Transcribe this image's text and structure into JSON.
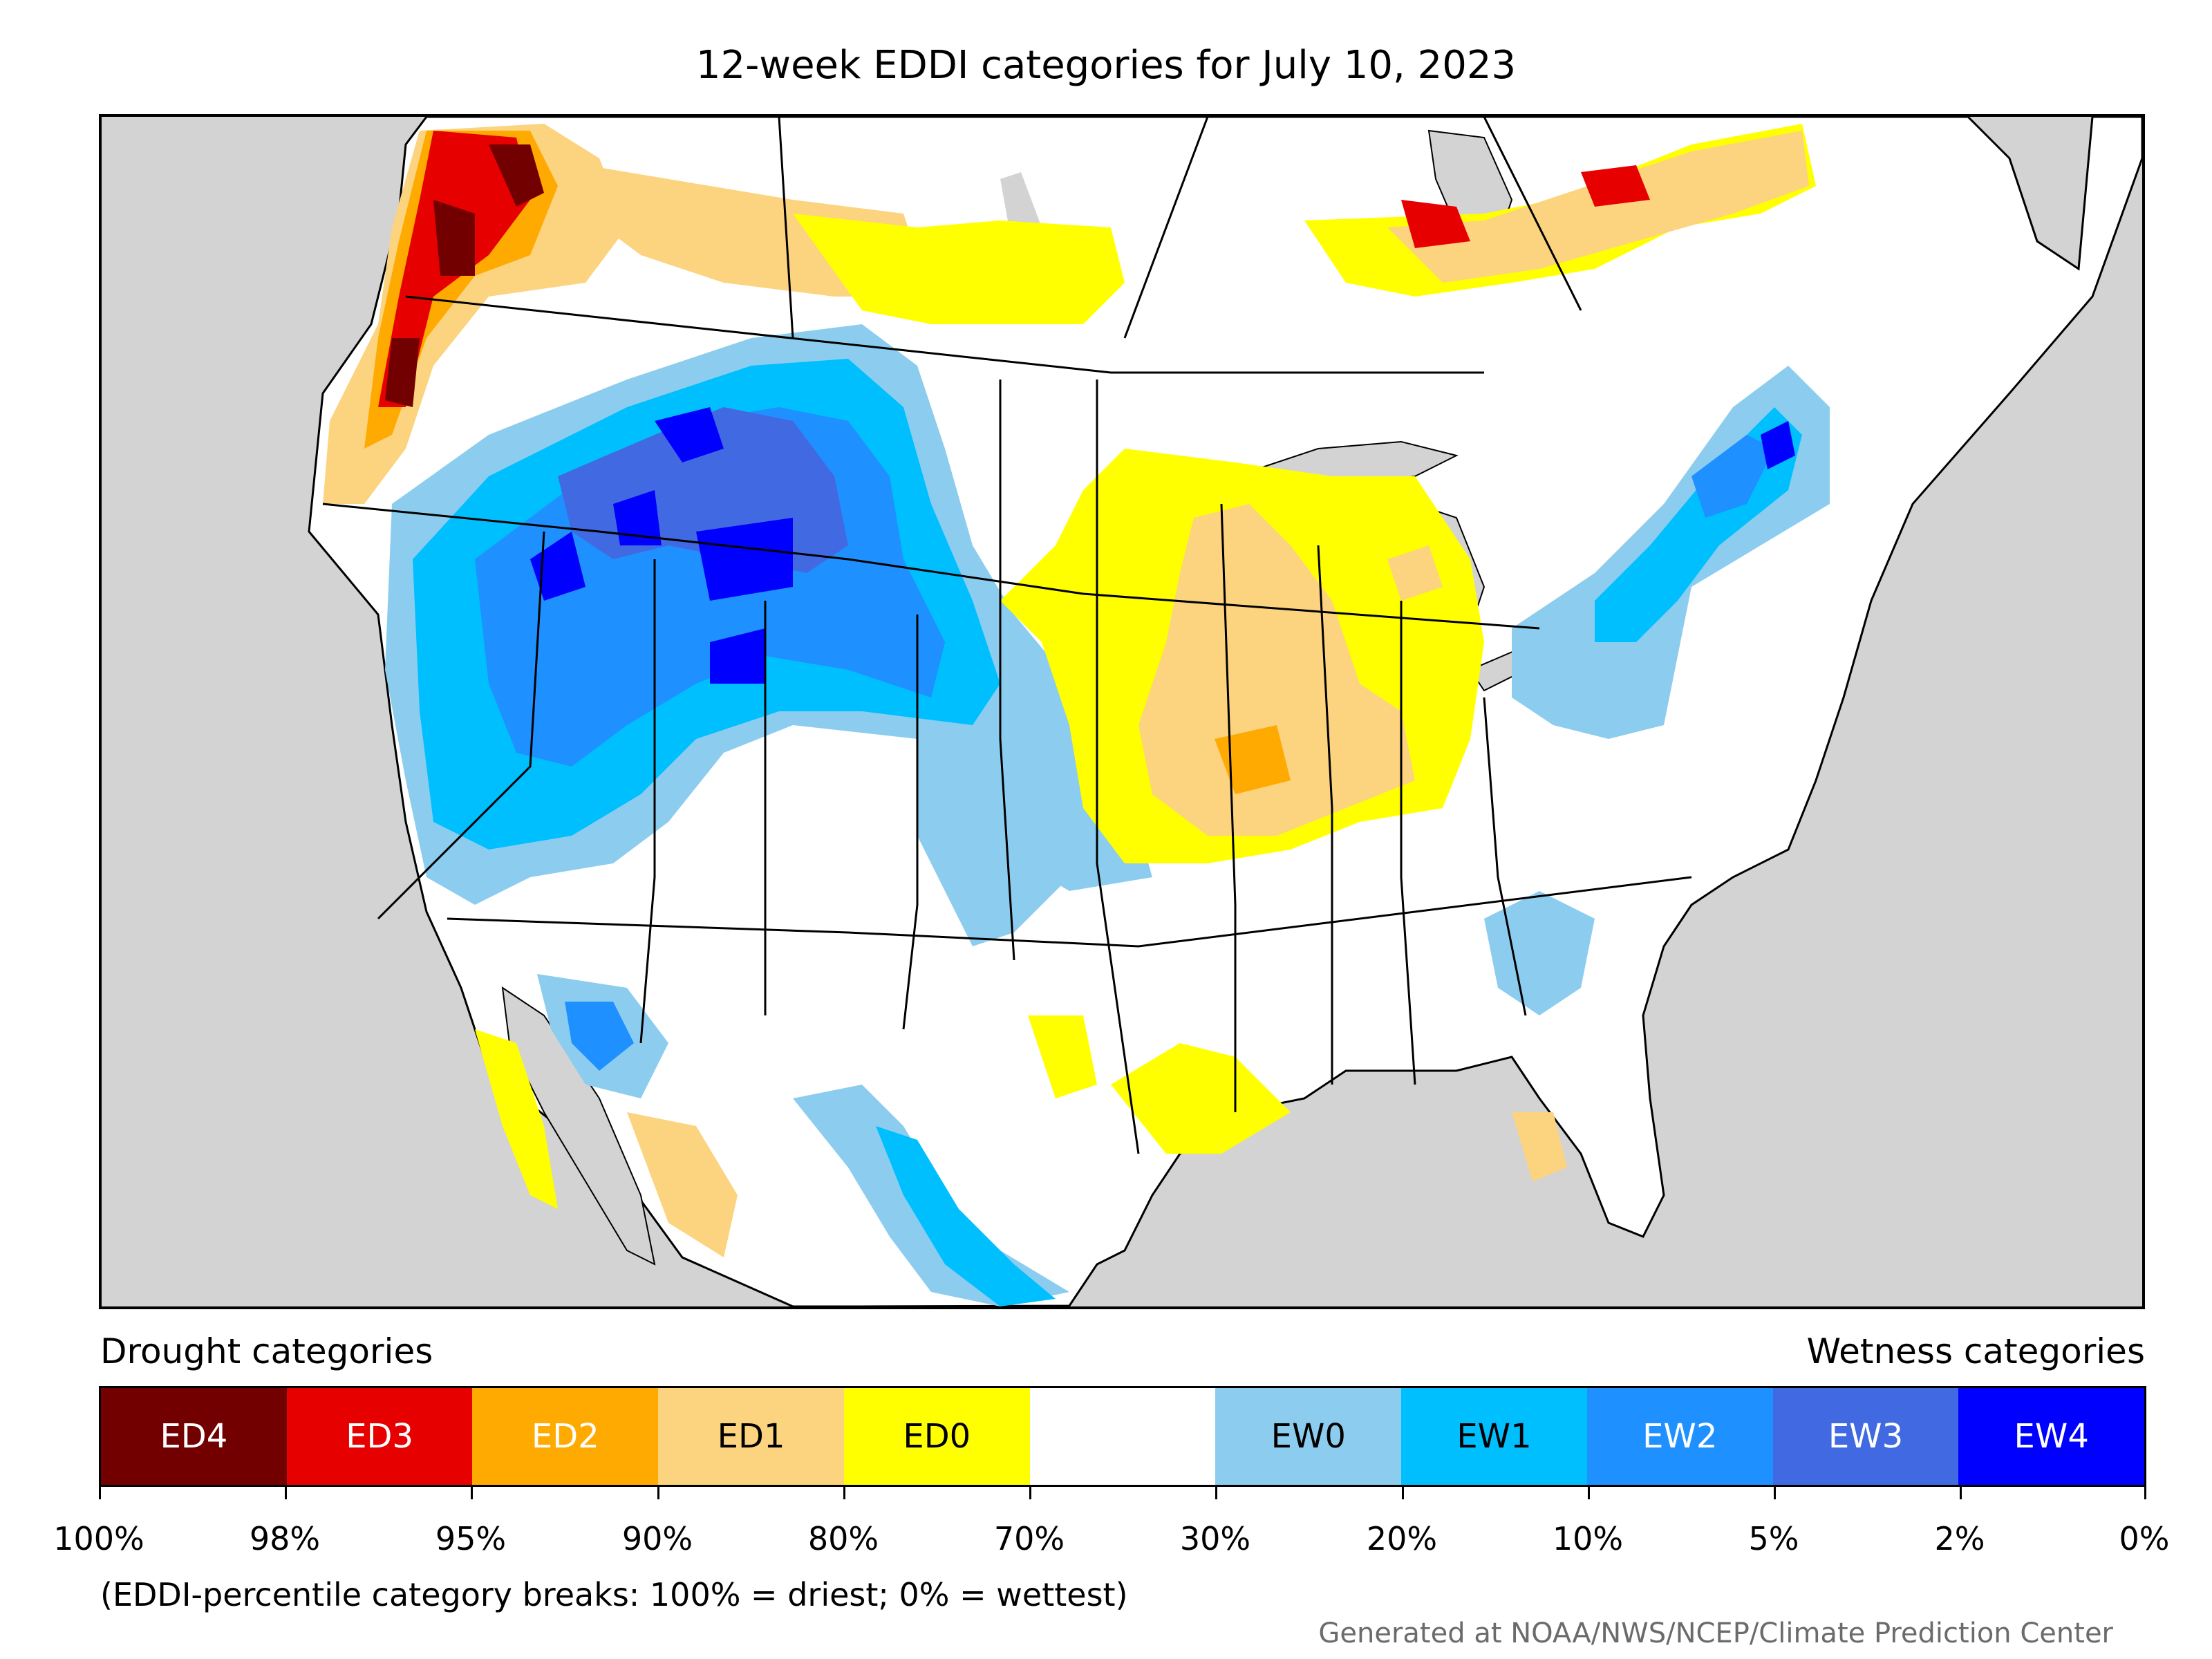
{
  "title": "12-week EDDI categories for July 10, 2023",
  "legend": {
    "drought_heading": "Drought categories",
    "wetness_heading": "Wetness categories",
    "categories": [
      {
        "label": "ED4",
        "color": "#730000",
        "text_color": "#ffffff"
      },
      {
        "label": "ED3",
        "color": "#e60000",
        "text_color": "#ffffff"
      },
      {
        "label": "ED2",
        "color": "#ffaa00",
        "text_color": "#ffffff"
      },
      {
        "label": "ED1",
        "color": "#fcd37f",
        "text_color": "#000000"
      },
      {
        "label": "ED0",
        "color": "#ffff00",
        "text_color": "#000000"
      },
      {
        "label": "",
        "color": "#ffffff",
        "text_color": "#000000"
      },
      {
        "label": "EW0",
        "color": "#8ccdef",
        "text_color": "#000000"
      },
      {
        "label": "EW1",
        "color": "#00bfff",
        "text_color": "#000000"
      },
      {
        "label": "EW2",
        "color": "#1e90ff",
        "text_color": "#ffffff"
      },
      {
        "label": "EW3",
        "color": "#4169e1",
        "text_color": "#ffffff"
      },
      {
        "label": "EW4",
        "color": "#0000ff",
        "text_color": "#ffffff"
      }
    ],
    "breaks": [
      "100%",
      "98%",
      "95%",
      "90%",
      "80%",
      "70%",
      "30%",
      "20%",
      "10%",
      "5%",
      "2%",
      "0%"
    ]
  },
  "note": "(EDDI-percentile category breaks: 100% = driest; 0% = wettest)",
  "credit": "Generated at NOAA/NWS/NCEP/Climate Prediction Center",
  "colors": {
    "ocean_background": "#d3d3d3",
    "land": "#ffffff",
    "border": "#000000"
  }
}
